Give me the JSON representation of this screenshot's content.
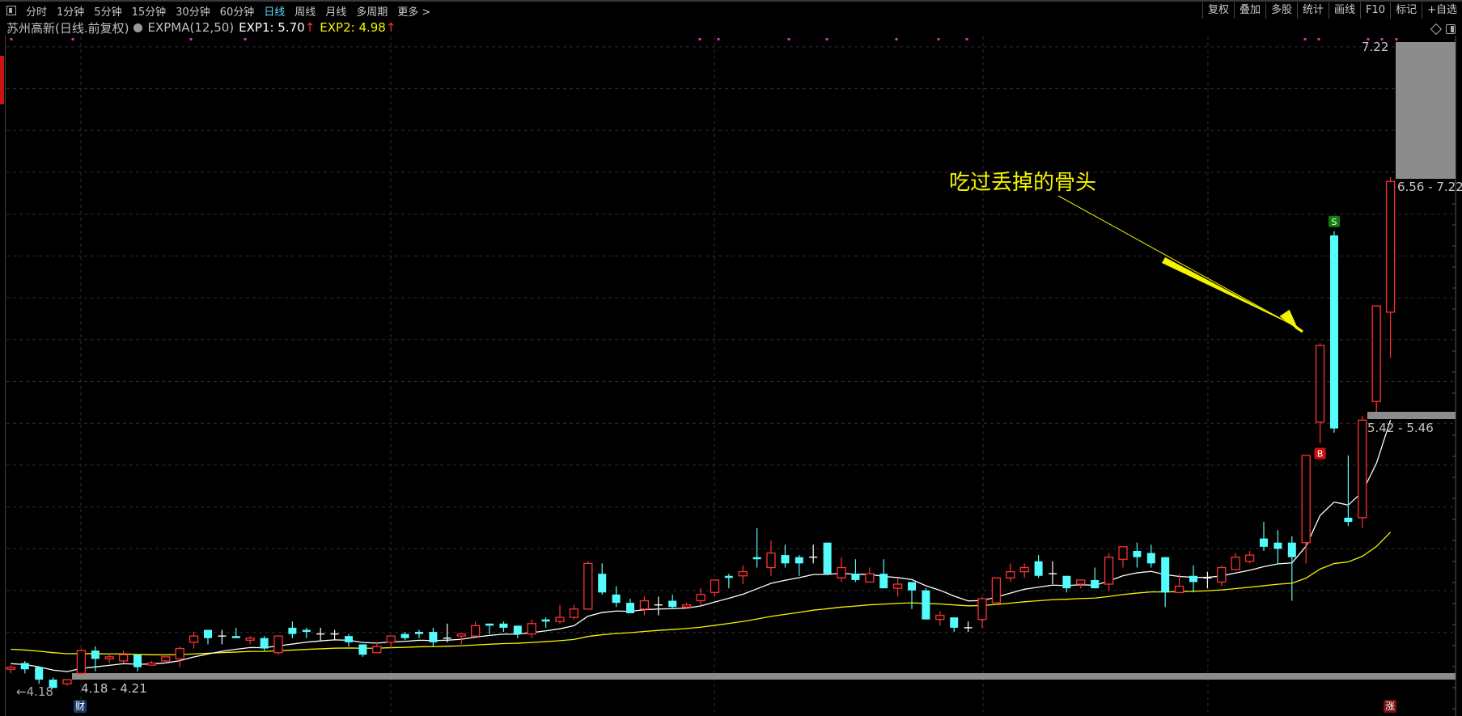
{
  "toolbar": {
    "periods": [
      "分时",
      "1分钟",
      "5分钟",
      "15分钟",
      "30分钟",
      "60分钟",
      "日线",
      "周线",
      "月线",
      "多周期",
      "更多 >"
    ],
    "active_period": "日线",
    "right_buttons": [
      "复权",
      "叠加",
      "多股",
      "统计",
      "画线",
      "F10",
      "标记",
      "+自选"
    ]
  },
  "header": {
    "stock": "苏州高新(日线.前复权)",
    "indicator": "EXPMA(12,50)",
    "exp1_label": "EXP1: 5.70",
    "exp1_arrow": "↑",
    "exp2_label": "EXP2: 4.98",
    "exp2_arrow": "↑"
  },
  "colors": {
    "up": "#ff3232",
    "down": "#54fcfc",
    "exp1": "#ffffff",
    "exp2": "#f5f500",
    "annotation": "#f5f500",
    "marker": "#c040c0"
  },
  "chart_data": {
    "type": "candlestick",
    "ylim": [
      4.02,
      7.22
    ],
    "ohlc_order": [
      "open",
      "high",
      "low",
      "close"
    ],
    "candles": [
      [
        4.23,
        4.25,
        4.21,
        4.24
      ],
      [
        4.26,
        4.27,
        4.21,
        4.23
      ],
      [
        4.24,
        4.24,
        4.16,
        4.18
      ],
      [
        4.18,
        4.19,
        4.14,
        4.14
      ],
      [
        4.16,
        4.18,
        4.15,
        4.18
      ],
      [
        4.21,
        4.33,
        4.21,
        4.32
      ],
      [
        4.32,
        4.34,
        4.22,
        4.28
      ],
      [
        4.28,
        4.3,
        4.26,
        4.29
      ],
      [
        4.27,
        4.32,
        4.26,
        4.3
      ],
      [
        4.3,
        4.3,
        4.22,
        4.24
      ],
      [
        4.25,
        4.27,
        4.25,
        4.26
      ],
      [
        4.27,
        4.29,
        4.26,
        4.29
      ],
      [
        4.28,
        4.34,
        4.24,
        4.33
      ],
      [
        4.36,
        4.41,
        4.33,
        4.39
      ],
      [
        4.42,
        4.42,
        4.35,
        4.38
      ],
      [
        4.39,
        4.42,
        4.35,
        4.39
      ],
      [
        4.39,
        4.43,
        4.38,
        4.38
      ],
      [
        4.37,
        4.39,
        4.35,
        4.38
      ],
      [
        4.38,
        4.39,
        4.32,
        4.33
      ],
      [
        4.31,
        4.39,
        4.3,
        4.39
      ],
      [
        4.43,
        4.46,
        4.38,
        4.4
      ],
      [
        4.42,
        4.43,
        4.38,
        4.41
      ],
      [
        4.4,
        4.43,
        4.37,
        4.4
      ],
      [
        4.4,
        4.42,
        4.37,
        4.4
      ],
      [
        4.39,
        4.4,
        4.34,
        4.36
      ],
      [
        4.35,
        4.35,
        4.29,
        4.3
      ],
      [
        4.31,
        4.36,
        4.31,
        4.34
      ],
      [
        4.36,
        4.39,
        4.33,
        4.39
      ],
      [
        4.4,
        4.41,
        4.37,
        4.38
      ],
      [
        4.41,
        4.42,
        4.38,
        4.4
      ],
      [
        4.41,
        4.43,
        4.34,
        4.36
      ],
      [
        4.38,
        4.45,
        4.36,
        4.38
      ],
      [
        4.39,
        4.4,
        4.35,
        4.4
      ],
      [
        4.39,
        4.46,
        4.39,
        4.44
      ],
      [
        4.45,
        4.45,
        4.4,
        4.44
      ],
      [
        4.45,
        4.46,
        4.41,
        4.43
      ],
      [
        4.44,
        4.44,
        4.38,
        4.4
      ],
      [
        4.4,
        4.47,
        4.38,
        4.45
      ],
      [
        4.47,
        4.48,
        4.43,
        4.46
      ],
      [
        4.46,
        4.54,
        4.45,
        4.48
      ],
      [
        4.48,
        4.54,
        4.47,
        4.52
      ],
      [
        4.52,
        4.75,
        4.52,
        4.74
      ],
      [
        4.69,
        4.74,
        4.59,
        4.6
      ],
      [
        4.59,
        4.63,
        4.53,
        4.55
      ],
      [
        4.55,
        4.57,
        4.5,
        4.5
      ],
      [
        4.52,
        4.58,
        4.49,
        4.56
      ],
      [
        4.54,
        4.58,
        4.49,
        4.54
      ],
      [
        4.56,
        4.59,
        4.52,
        4.53
      ],
      [
        4.53,
        4.55,
        4.52,
        4.54
      ],
      [
        4.56,
        4.62,
        4.54,
        4.59
      ],
      [
        4.6,
        4.66,
        4.58,
        4.66
      ],
      [
        4.68,
        4.69,
        4.62,
        4.67
      ],
      [
        4.68,
        4.73,
        4.64,
        4.7
      ],
      [
        4.77,
        4.91,
        4.72,
        4.76
      ],
      [
        4.72,
        4.85,
        4.68,
        4.79
      ],
      [
        4.78,
        4.83,
        4.72,
        4.74
      ],
      [
        4.77,
        4.78,
        4.68,
        4.74
      ],
      [
        4.77,
        4.83,
        4.74,
        4.77
      ],
      [
        4.84,
        4.84,
        4.69,
        4.69
      ],
      [
        4.67,
        4.77,
        4.65,
        4.72
      ],
      [
        4.69,
        4.76,
        4.65,
        4.66
      ],
      [
        4.65,
        4.72,
        4.65,
        4.69
      ],
      [
        4.69,
        4.76,
        4.62,
        4.62
      ],
      [
        4.62,
        4.67,
        4.58,
        4.64
      ],
      [
        4.65,
        4.65,
        4.52,
        4.61
      ],
      [
        4.61,
        4.62,
        4.47,
        4.47
      ],
      [
        4.47,
        4.51,
        4.44,
        4.49
      ],
      [
        4.48,
        4.48,
        4.41,
        4.43
      ],
      [
        4.43,
        4.46,
        4.41,
        4.43
      ],
      [
        4.47,
        4.58,
        4.43,
        4.57
      ],
      [
        4.55,
        4.67,
        4.55,
        4.67
      ],
      [
        4.67,
        4.74,
        4.65,
        4.7
      ],
      [
        4.7,
        4.74,
        4.67,
        4.72
      ],
      [
        4.75,
        4.78,
        4.67,
        4.68
      ],
      [
        4.69,
        4.75,
        4.64,
        4.69
      ],
      [
        4.68,
        4.68,
        4.6,
        4.62
      ],
      [
        4.64,
        4.66,
        4.62,
        4.66
      ],
      [
        4.66,
        4.72,
        4.62,
        4.62
      ],
      [
        4.64,
        4.79,
        4.61,
        4.77
      ],
      [
        4.76,
        4.82,
        4.72,
        4.82
      ],
      [
        4.8,
        4.84,
        4.72,
        4.77
      ],
      [
        4.79,
        4.83,
        4.72,
        4.74
      ],
      [
        4.77,
        4.77,
        4.53,
        4.6
      ],
      [
        4.6,
        4.69,
        4.6,
        4.63
      ],
      [
        4.68,
        4.73,
        4.6,
        4.65
      ],
      [
        4.67,
        4.7,
        4.62,
        4.67
      ],
      [
        4.65,
        4.73,
        4.63,
        4.72
      ],
      [
        4.71,
        4.79,
        4.71,
        4.77
      ],
      [
        4.75,
        4.8,
        4.74,
        4.78
      ],
      [
        4.86,
        4.94,
        4.8,
        4.82
      ],
      [
        4.84,
        4.9,
        4.74,
        4.81
      ],
      [
        4.84,
        4.87,
        4.56,
        4.77
      ],
      [
        4.84,
        5.26,
        4.74,
        5.26
      ],
      [
        5.42,
        5.8,
        5.32,
        5.79
      ],
      [
        6.32,
        6.34,
        5.37,
        5.39
      ],
      [
        4.96,
        5.26,
        4.92,
        4.94
      ],
      [
        4.96,
        5.45,
        4.91,
        5.43
      ],
      [
        5.52,
        5.98,
        5.47,
        5.98
      ],
      [
        5.95,
        6.6,
        5.73,
        6.58
      ]
    ],
    "series": [
      {
        "name": "EXP1",
        "period": 12,
        "last": 5.7
      },
      {
        "name": "EXP2",
        "period": 50,
        "last": 4.98
      }
    ],
    "signals": [
      {
        "label": "B",
        "candle": 93,
        "color": "#d01010"
      },
      {
        "label": "S",
        "candle": 94,
        "color": "#137a13"
      }
    ],
    "marker_dots": [
      14,
      90,
      236,
      303,
      865,
      888,
      975,
      1022,
      1108,
      1160,
      1195,
      1613,
      1630,
      1691,
      1708,
      1726
    ],
    "price_labels": {
      "high": "7.22",
      "low": "4.18",
      "zone_top": "6.56 - 7.22",
      "zone_mid": "5.42 - 5.46",
      "zone_bottom": "4.18 - 4.21"
    },
    "annotation": "吃过丢掉的骨头"
  },
  "badges": {
    "cai": "财",
    "zhang": "涨"
  }
}
